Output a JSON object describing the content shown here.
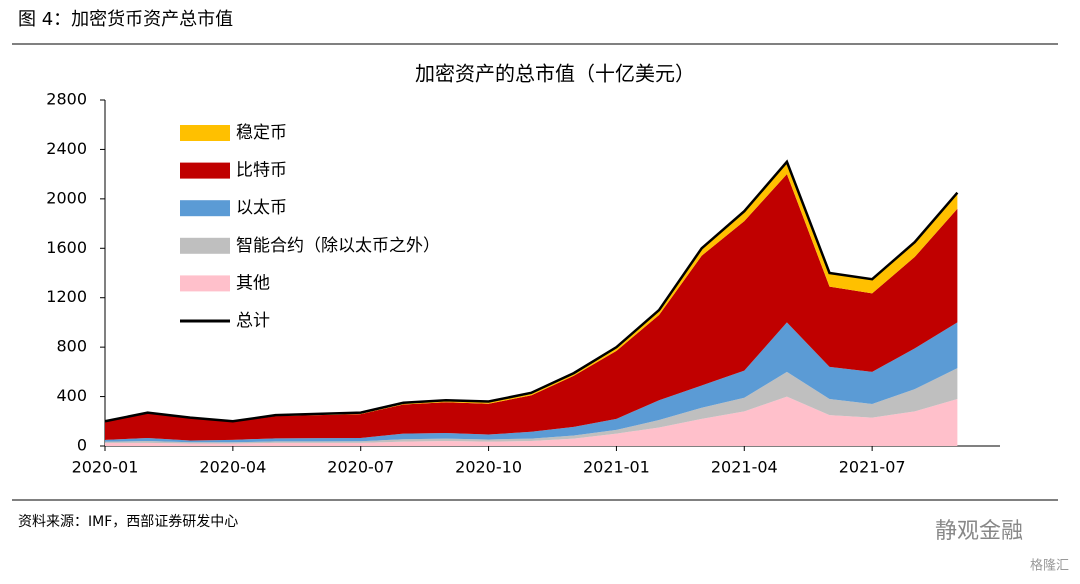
{
  "header": {
    "figure_label": "图 4：加密货币资产总市值"
  },
  "chart_data": {
    "type": "area",
    "stacked": true,
    "title": "加密资产的总市值（十亿美元）",
    "x": [
      "2020-01",
      null,
      null,
      "2020-04",
      null,
      null,
      "2020-07",
      null,
      null,
      "2020-10",
      null,
      null,
      "2021-01",
      null,
      null,
      "2021-04",
      null,
      null,
      "2021-07",
      null,
      null
    ],
    "series": [
      {
        "name": "稳定币",
        "color": "#ffc000",
        "values": [
          5,
          5,
          5,
          6,
          8,
          10,
          12,
          14,
          16,
          18,
          20,
          22,
          30,
          40,
          60,
          80,
          100,
          110,
          115,
          120,
          130
        ]
      },
      {
        "name": "比特币",
        "color": "#c00000",
        "values": [
          145,
          200,
          180,
          144,
          180,
          186,
          193,
          236,
          249,
          249,
          295,
          413,
          550,
          690,
          1050,
          1210,
          1200,
          650,
          635,
          740,
          920
        ]
      },
      {
        "name": "以太币",
        "color": "#5b9bd5",
        "values": [
          15,
          25,
          15,
          20,
          25,
          27,
          27,
          45,
          45,
          40,
          55,
          70,
          90,
          160,
          180,
          220,
          400,
          260,
          260,
          330,
          370
        ]
      },
      {
        "name": "智能合约（除以太币之外）",
        "color": "#bfbfbf",
        "values": [
          10,
          15,
          10,
          10,
          12,
          12,
          13,
          20,
          20,
          18,
          20,
          25,
          30,
          60,
          90,
          110,
          200,
          130,
          110,
          180,
          250
        ]
      },
      {
        "name": "其他",
        "color": "#ffc0cb",
        "values": [
          25,
          25,
          20,
          20,
          25,
          25,
          25,
          35,
          40,
          35,
          40,
          60,
          100,
          150,
          220,
          280,
          400,
          250,
          230,
          280,
          380
        ]
      },
      {
        "name": "总计",
        "color": "#000000",
        "type": "line",
        "values": [
          200,
          270,
          230,
          200,
          250,
          260,
          270,
          350,
          370,
          360,
          430,
          590,
          800,
          1100,
          1600,
          1900,
          2300,
          1400,
          1350,
          1650,
          2050
        ]
      }
    ],
    "ylim": [
      0,
      2800
    ],
    "yticks": [
      0,
      400,
      800,
      1200,
      1600,
      2000,
      2400,
      2800
    ],
    "legend": "upper left"
  },
  "source": "资料来源：IMF，西部证券研发中心",
  "watermark": "静观金融",
  "watermark_brand": "格隆汇"
}
